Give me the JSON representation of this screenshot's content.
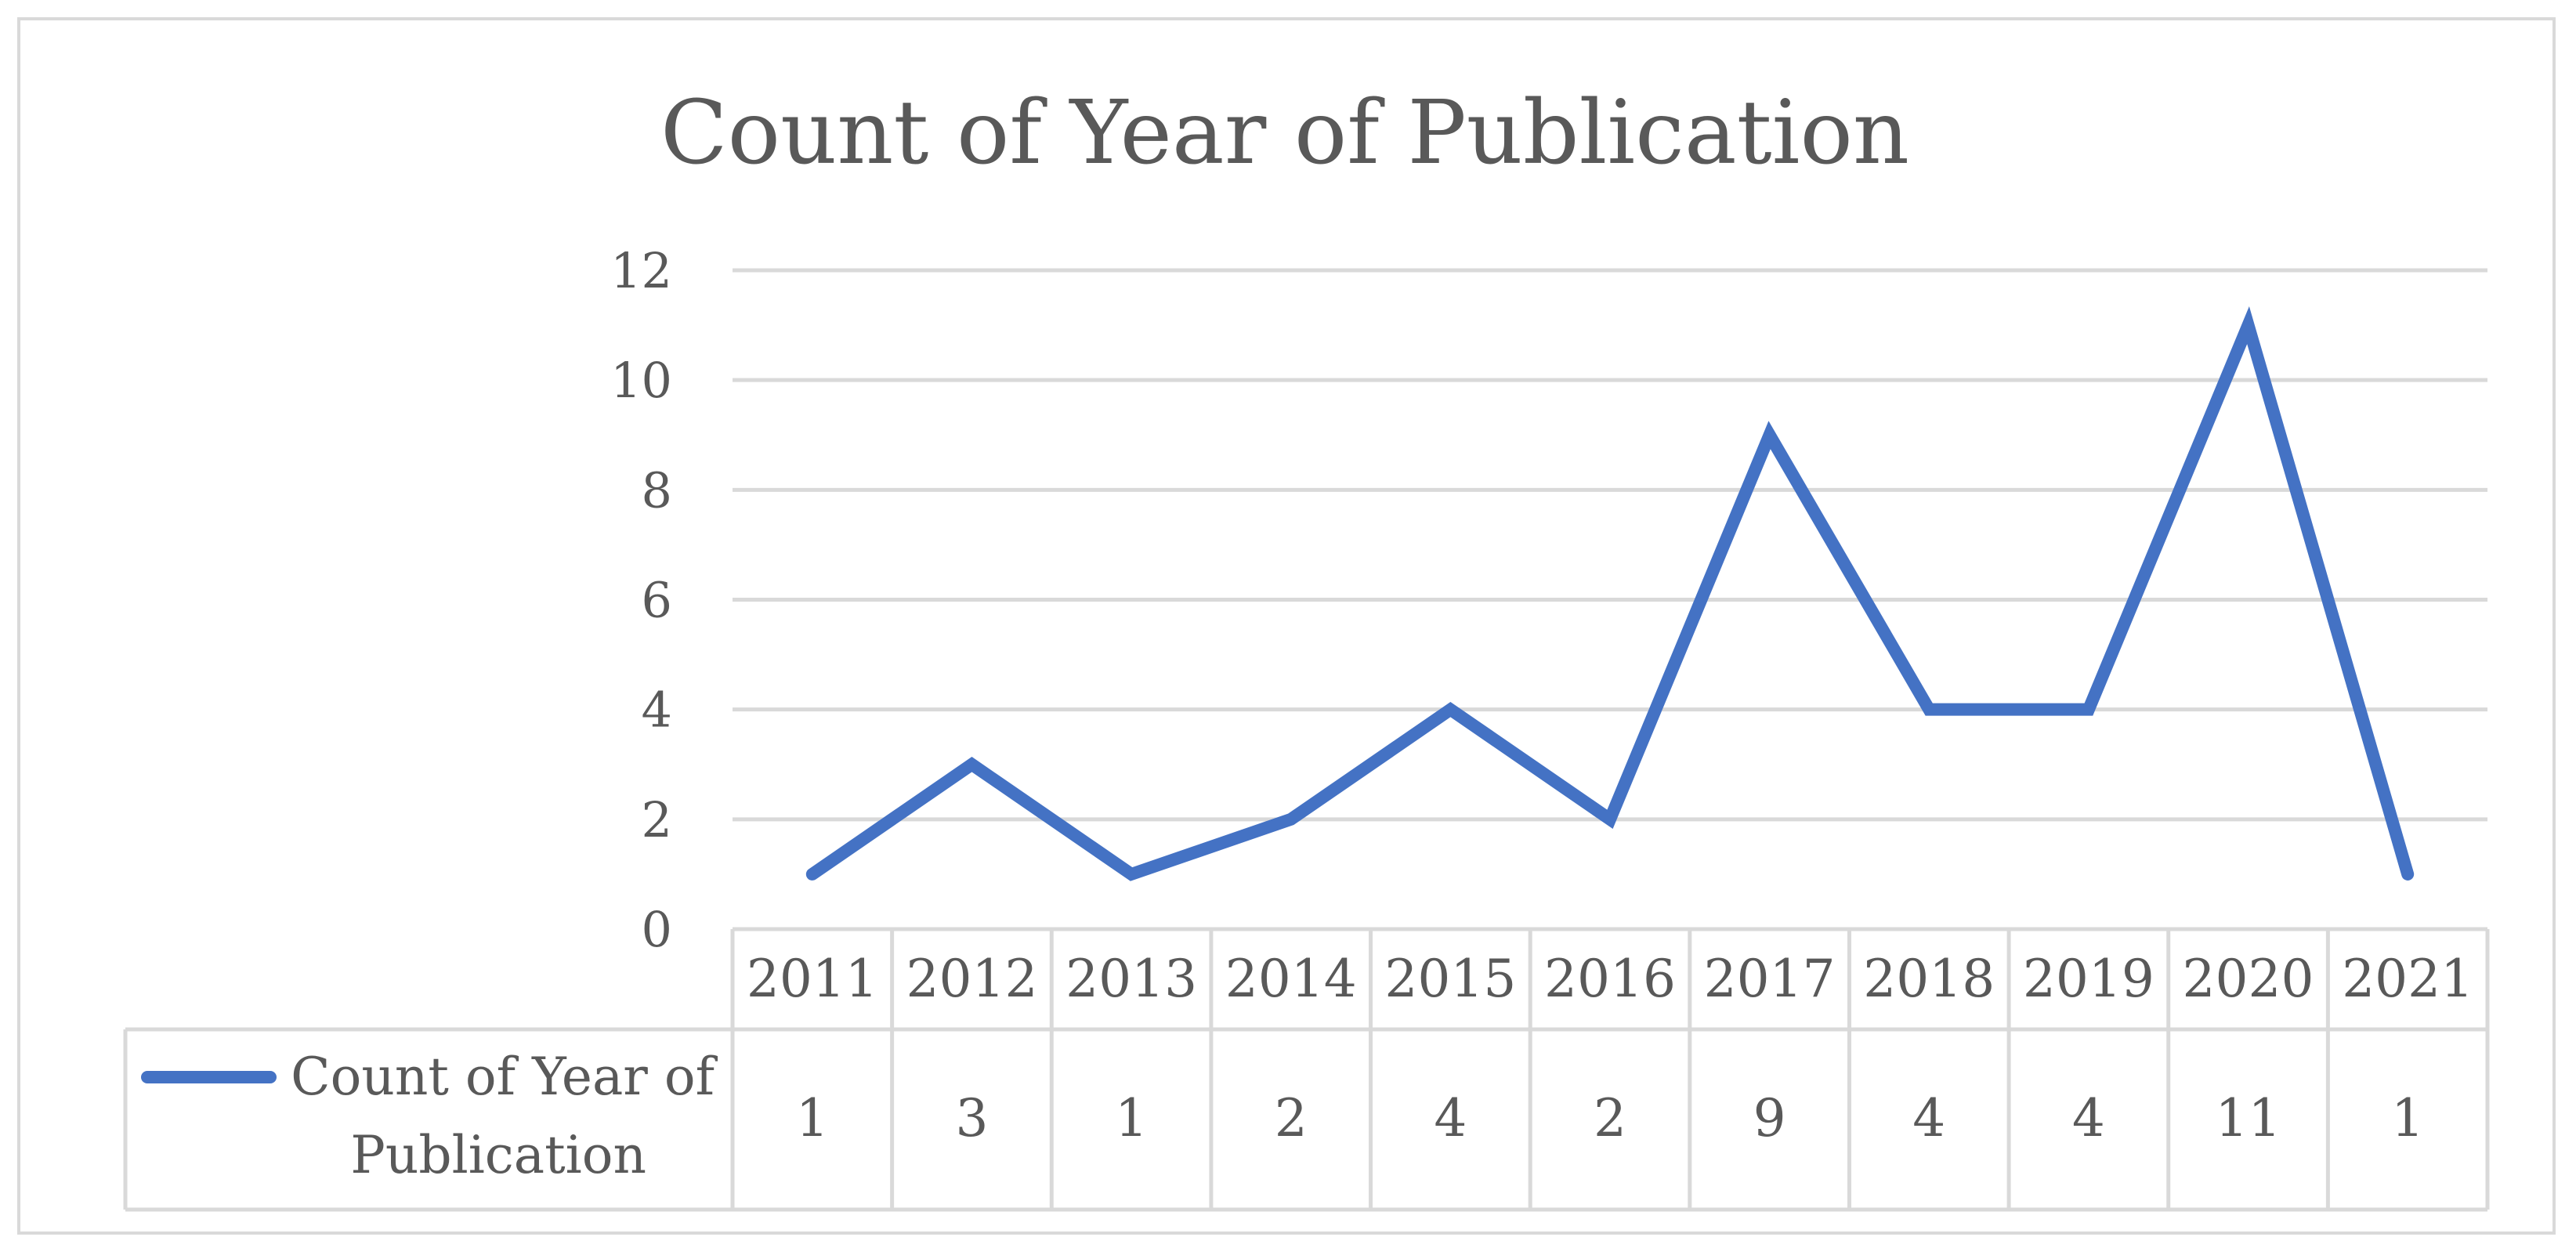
{
  "chart_data": {
    "type": "line",
    "title": "Count of Year of Publication",
    "categories": [
      "2011",
      "2012",
      "2013",
      "2014",
      "2015",
      "2016",
      "2017",
      "2018",
      "2019",
      "2020",
      "2021"
    ],
    "series": [
      {
        "name": "Count of Year of Publication",
        "values": [
          1,
          3,
          1,
          2,
          4,
          2,
          9,
          4,
          4,
          11,
          1
        ],
        "color": "#4472C4"
      }
    ],
    "yticks": [
      "0",
      "2",
      "4",
      "6",
      "8",
      "10",
      "12"
    ],
    "ylim": [
      0,
      12
    ],
    "grid": true,
    "legend": "data-table",
    "colors": {
      "line": "#4472C4",
      "grid": "#d9d9d9",
      "text": "#595959"
    },
    "legend_label_lines": [
      "Count of Year of",
      "Publication"
    ]
  }
}
